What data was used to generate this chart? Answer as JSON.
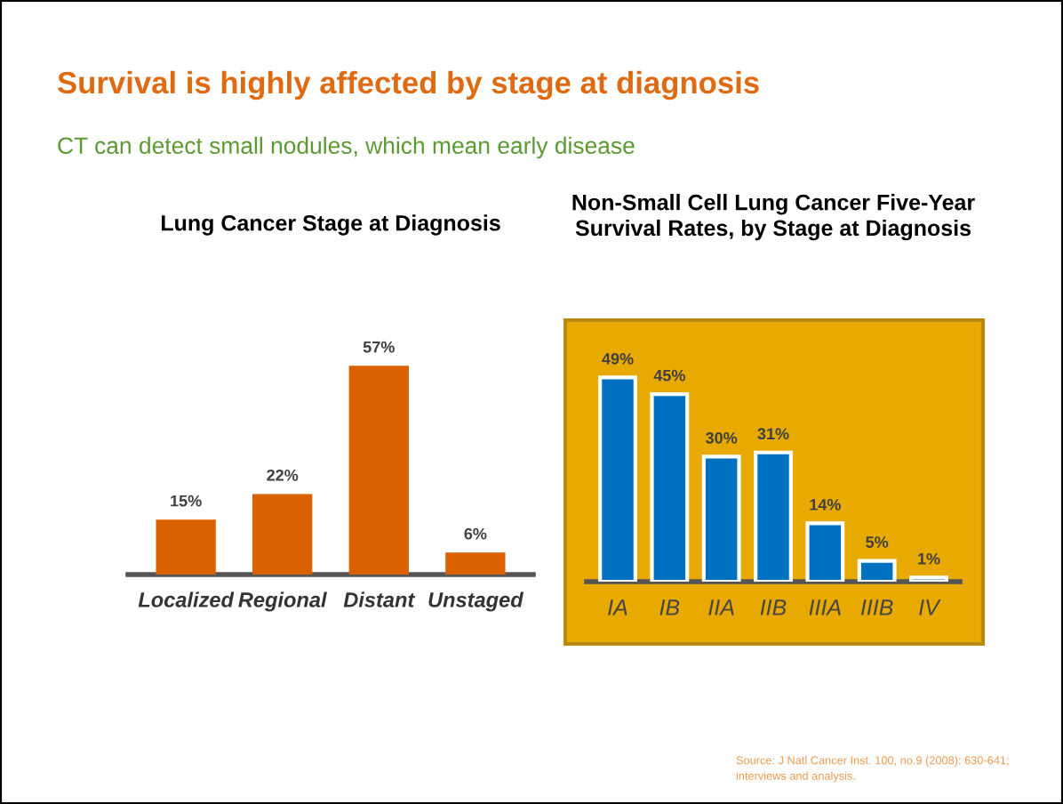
{
  "chart_data": [
    {
      "type": "bar",
      "title": "Lung Cancer Stage at Diagnosis",
      "categories": [
        "Localized",
        "Regional",
        "Distant",
        "Unstaged"
      ],
      "values": [
        15,
        22,
        57,
        6
      ],
      "color": "#db6100",
      "value_labels": [
        "15%",
        "22%",
        "57%",
        "6%"
      ],
      "annotations": [
        "Survival is highly affected by stage at diagnosis",
        "CT can detect small nodules, which mean early disease"
      ]
    },
    {
      "type": "bar",
      "title": "Non-Small Cell Lung Cancer Five-Year\nSurvival Rates, by Stage at Diagnosis",
      "categories": [
        "IA",
        "IB",
        "IIA",
        "IIB",
        "IIIA",
        "IIIB",
        "IV"
      ],
      "values": [
        49,
        45,
        30,
        31,
        14,
        5,
        1
      ],
      "color": "#0070c0",
      "value_labels": [
        "49%",
        "45%",
        "30%",
        "31%",
        "14%",
        "5%",
        "1%"
      ],
      "annotations": [
        "Source: J Natl Cancer Inst. 100, no.9 (2008): 630-641; interviews and analysis."
      ]
    }
  ]
}
